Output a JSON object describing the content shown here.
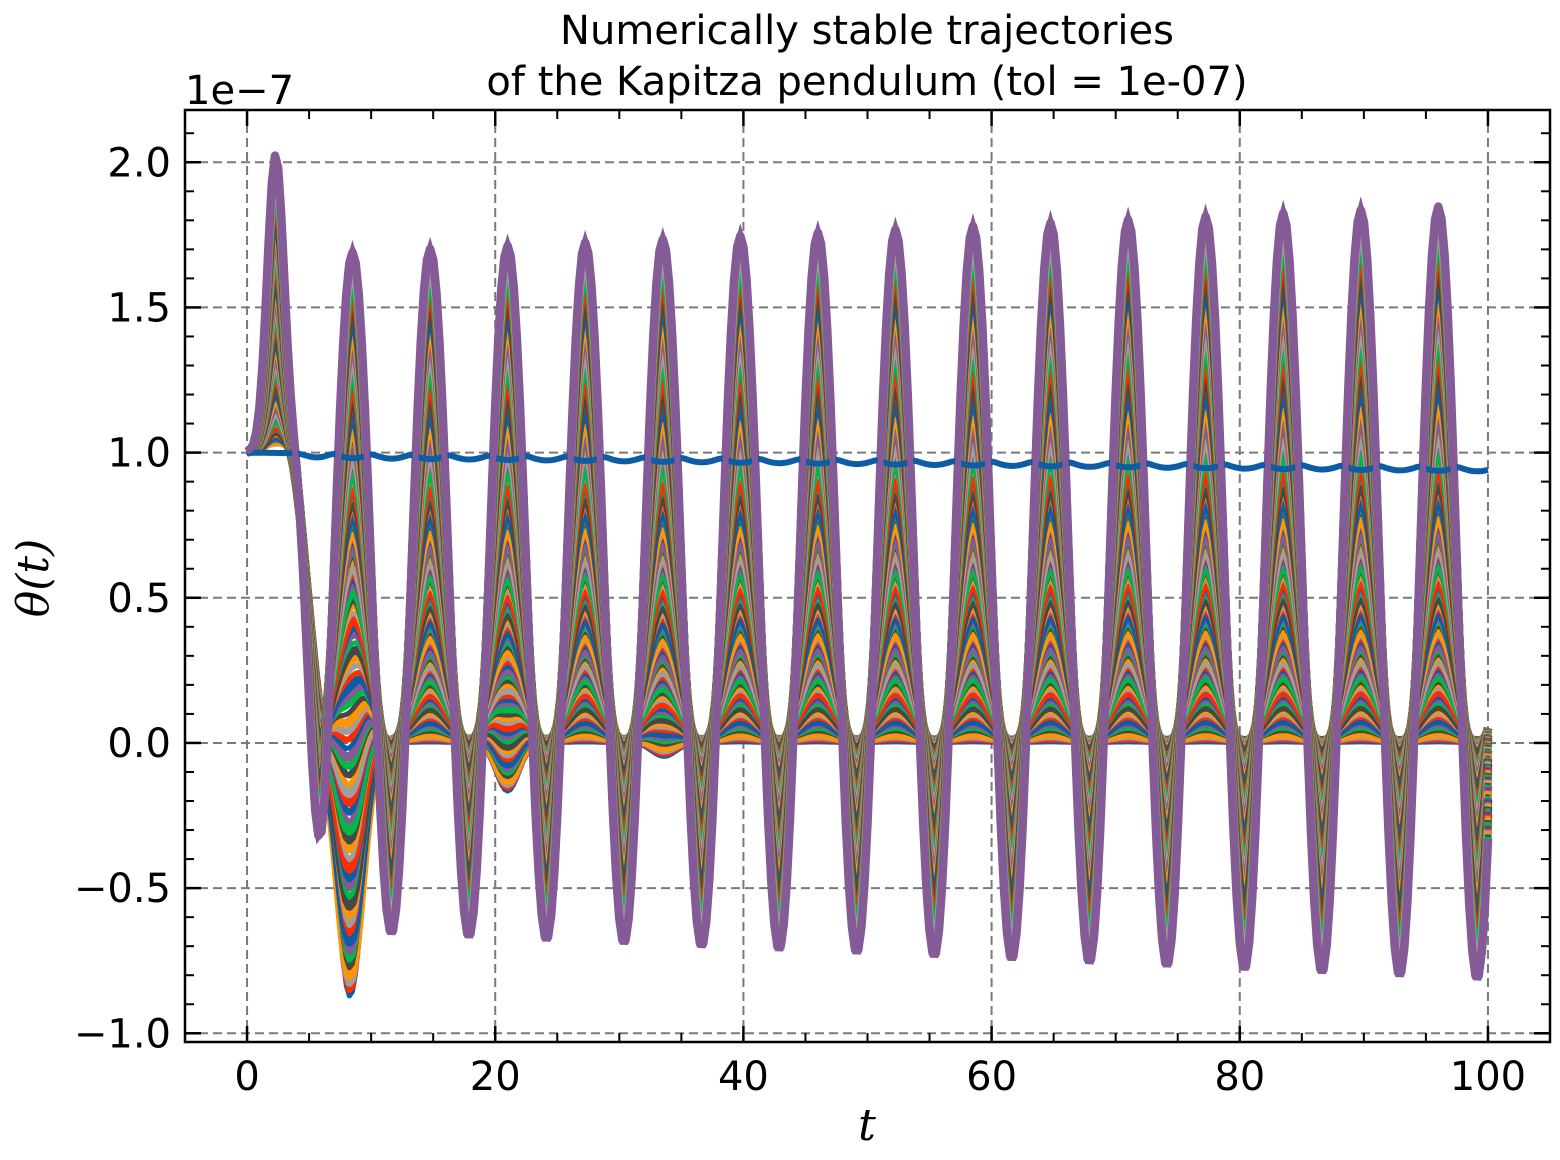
{
  "chart_data": {
    "type": "line",
    "title_line1": "Numerically stable trajectories",
    "title_line2": "of the Kapitza pendulum (tol = 1e-07)",
    "xlabel": "t",
    "ylabel": "θ(t)",
    "y_offset_label": "1e−7",
    "xlim": [
      -5,
      105
    ],
    "ylim": [
      -1.03,
      2.18
    ],
    "x_ticks": [
      0,
      20,
      40,
      60,
      80,
      100
    ],
    "x_tick_labels": [
      "0",
      "20",
      "40",
      "60",
      "80",
      "100"
    ],
    "y_ticks": [
      -1.0,
      -0.5,
      0.0,
      0.5,
      1.0,
      1.5,
      2.0
    ],
    "y_tick_labels": [
      "−1.0",
      "−0.5",
      "0.0",
      "0.5",
      "1.0",
      "1.5",
      "2.0"
    ],
    "grid": true,
    "legend": "none",
    "colors": [
      "#0C5DA5",
      "#00B945",
      "#FF9500",
      "#FF2C00",
      "#845B97",
      "#474747",
      "#9E9E9E"
    ],
    "series_count": 140,
    "t_range": [
      0,
      100
    ],
    "initial_value": 1.0,
    "first_peak": {
      "t": 2.3,
      "value": 2.03
    },
    "oscillation_period": 6.25,
    "first_trough_t": 8.5,
    "upper_envelope_peaks": {
      "t": [
        8.5,
        96.5
      ],
      "value": [
        1.68,
        1.85
      ]
    },
    "lowest_trough": {
      "t": 8.3,
      "value": -0.88
    },
    "flat_series_value": {
      "t": [
        0,
        100
      ],
      "value": [
        1.0,
        0.95
      ]
    }
  }
}
